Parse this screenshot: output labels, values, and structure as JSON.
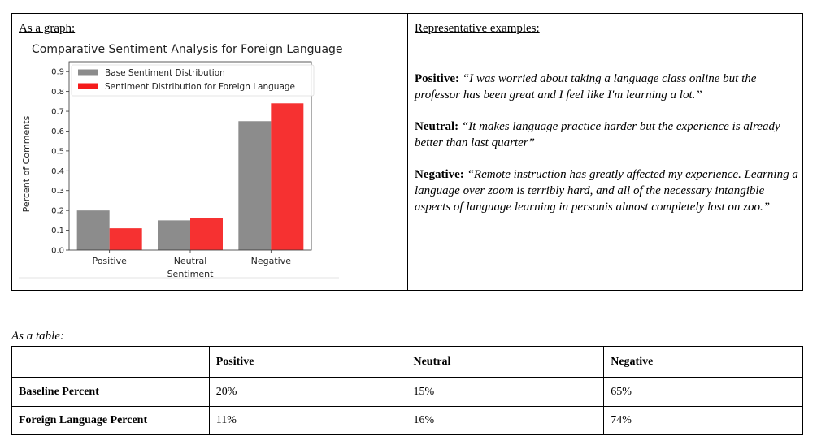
{
  "left_cell": {
    "heading": "As a graph:"
  },
  "right_cell": {
    "heading": "Representative examples:",
    "examples": [
      {
        "label": "Positive:",
        "quote": "“I was worried about taking a language class online but the professor has been great and I feel like I'm learning a lot.”"
      },
      {
        "label": "Neutral:",
        "quote": "“It makes language practice harder but the experience is already better than last quarter”"
      },
      {
        "label": "Negative:",
        "quote": "“Remote instruction has greatly affected my experience. Learning a language over zoom is terribly hard, and all of the necessary intangible aspects of language learning in personis almost completely lost on zoo.”"
      }
    ]
  },
  "chart_data": {
    "type": "bar",
    "title": "Comparative Sentiment Analysis for Foreign Language",
    "xlabel": "Sentiment",
    "ylabel": "Percent of Comments",
    "categories": [
      "Positive",
      "Neutral",
      "Negative"
    ],
    "ylim": [
      0,
      0.95
    ],
    "yticks": [
      "0.0",
      "0.1",
      "0.2",
      "0.3",
      "0.4",
      "0.5",
      "0.6",
      "0.7",
      "0.8",
      "0.9"
    ],
    "legend_position": "top-left",
    "series": [
      {
        "name": "Base Sentiment Distribution",
        "values": [
          0.2,
          0.15,
          0.65
        ],
        "color": "#8c8c8c"
      },
      {
        "name": "Sentiment Distribution for Foreign Language",
        "values": [
          0.11,
          0.16,
          0.74
        ],
        "color": "#f51b1b"
      }
    ]
  },
  "table": {
    "caption": "As a table:",
    "headers": [
      "",
      "Positive",
      "Neutral",
      "Negative"
    ],
    "rows": [
      {
        "label": "Baseline Percent",
        "values": [
          "20%",
          "15%",
          "65%"
        ]
      },
      {
        "label": "Foreign Language Percent",
        "values": [
          "11%",
          "16%",
          "74%"
        ]
      }
    ]
  }
}
